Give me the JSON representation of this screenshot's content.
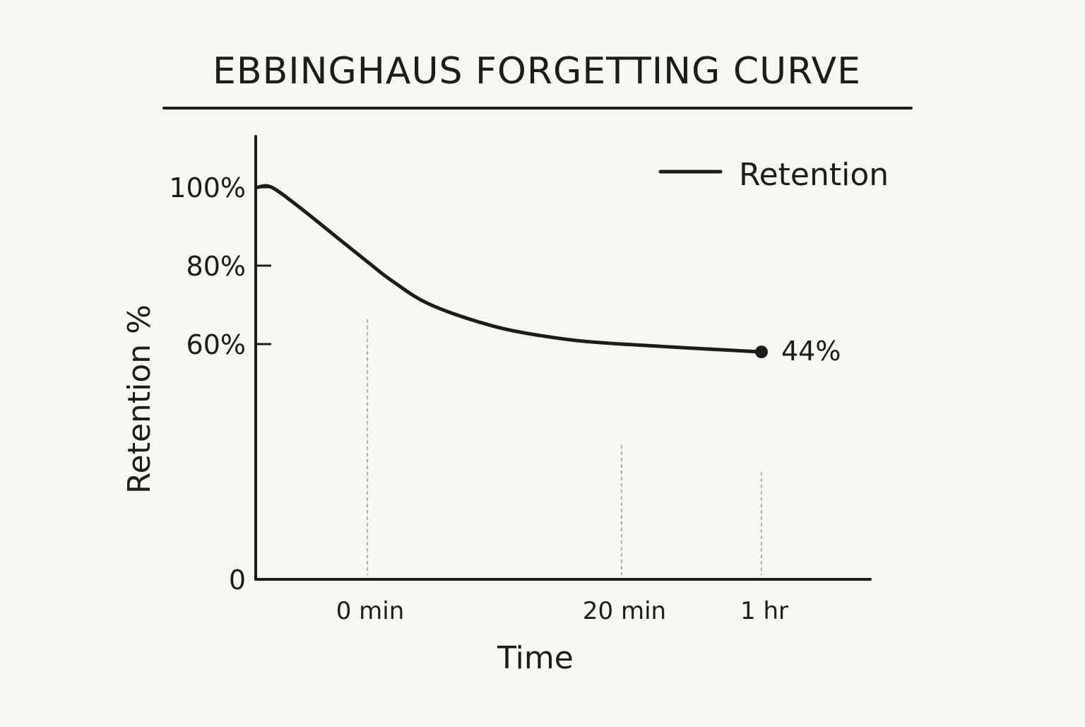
{
  "title": "EBBINGHAUS FORGETTING CURVE",
  "chart_data": {
    "type": "line",
    "title": "EBBINGHAUS FORGETTING CURVE",
    "xlabel": "Time",
    "ylabel": "Retention %",
    "y_ticks": [
      {
        "value": 0,
        "label": "0"
      },
      {
        "value": 60,
        "label": "60%"
      },
      {
        "value": 80,
        "label": "80%"
      },
      {
        "value": 100,
        "label": "100%"
      }
    ],
    "x_ticks": [
      "0 min",
      "20 min",
      "1 hr"
    ],
    "ylim": [
      0,
      120
    ],
    "legend": {
      "position": "top-right"
    },
    "grid": false,
    "series": [
      {
        "name": "Retention",
        "color": "#1c1c1c",
        "points": [
          {
            "t": -0.32,
            "v": 100
          },
          {
            "t": -0.28,
            "v": 100
          },
          {
            "t": -0.2,
            "v": 95
          },
          {
            "t": -0.1,
            "v": 88
          },
          {
            "t": 0,
            "v": 81
          },
          {
            "t": 0.1,
            "v": 76
          },
          {
            "t": 0.25,
            "v": 70
          },
          {
            "t": 0.5,
            "v": 64.5
          },
          {
            "t": 0.75,
            "v": 61.5
          },
          {
            "t": 1,
            "v": 60
          },
          {
            "t": 1.55,
            "v": 58
          }
        ]
      }
    ],
    "annotations": [
      {
        "text": "44%",
        "at_tick": "1 hr",
        "marker": "point"
      }
    ]
  }
}
